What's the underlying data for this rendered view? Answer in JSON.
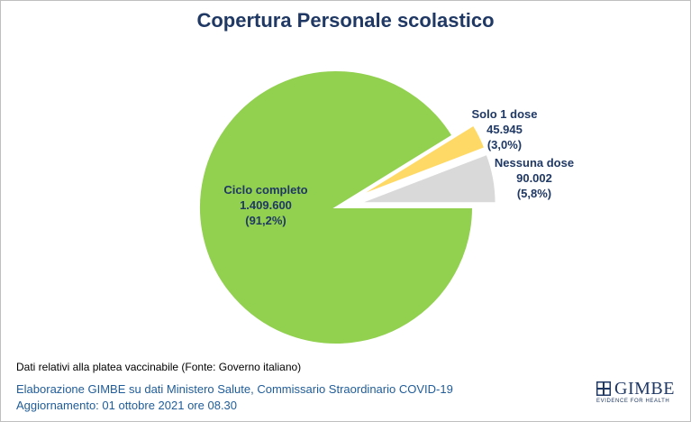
{
  "chart_data": {
    "type": "pie",
    "title": "Copertura Personale scolastico",
    "slices": [
      {
        "label": "Ciclo completo",
        "value": 1409600,
        "value_text": "1.409.600",
        "percent_text": "(91,2%)",
        "color": "#92d050"
      },
      {
        "label": "Solo 1 dose",
        "value": 45945,
        "value_text": "45.945",
        "percent_text": "(3,0%)",
        "color": "#ffd966"
      },
      {
        "label": "Nessuna dose",
        "value": 90002,
        "value_text": "90.002",
        "percent_text": "(5,8%)",
        "color": "#d9d9d9"
      }
    ]
  },
  "footer": {
    "note": "Dati relativi alla platea vaccinabile (Fonte: Governo italiano)",
    "source": "Elaborazione GIMBE su dati Ministero Salute, Commissario Straordinario COVID-19",
    "updated": "Aggiornamento: 01 ottobre 2021 ore 08.30"
  },
  "logo": {
    "name": "GIMBE",
    "tagline": "EVIDENCE FOR HEALTH"
  }
}
